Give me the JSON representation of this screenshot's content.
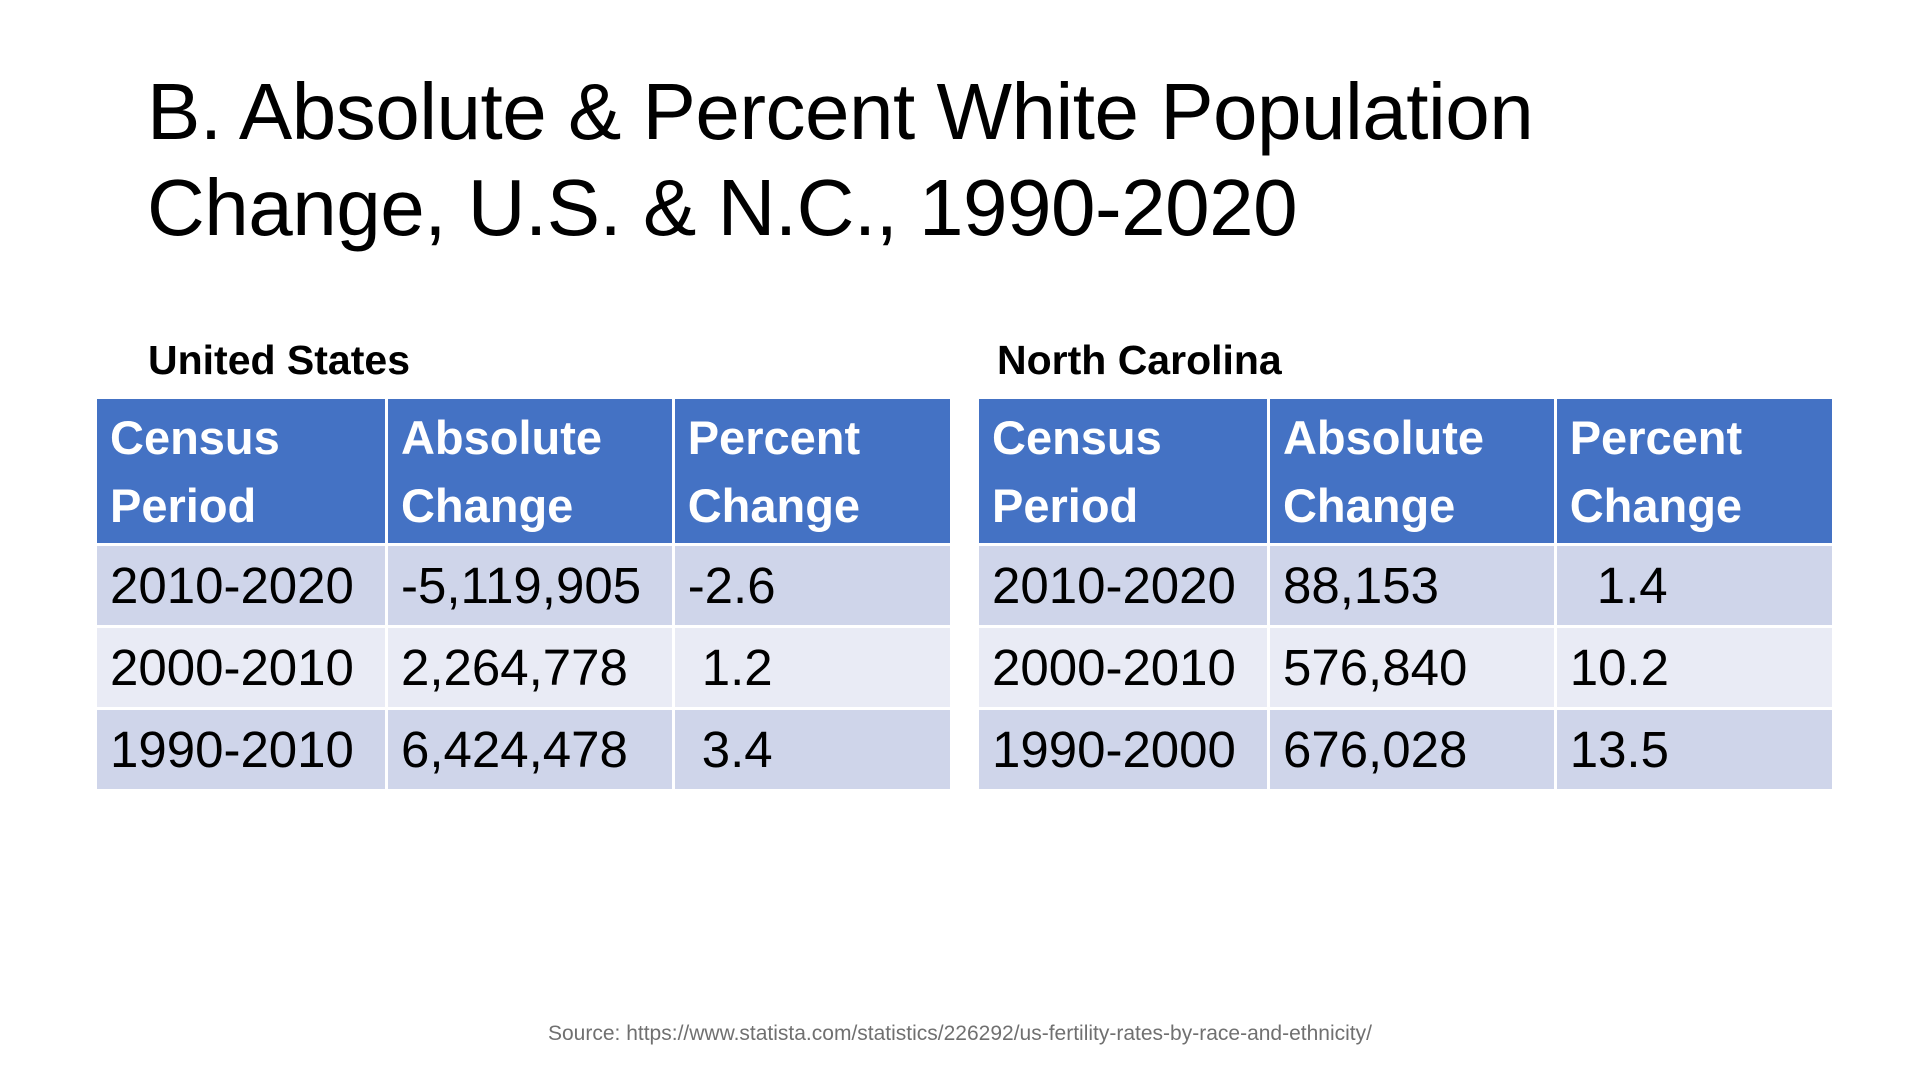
{
  "title": {
    "line1": "B. Absolute & Percent White Population",
    "line2": "Change, U.S. & N.C., 1990-2020"
  },
  "tables": {
    "us": {
      "heading": "United States",
      "headers": [
        "Census Period",
        "Absolute Change",
        "Percent Change"
      ],
      "rows": [
        [
          "2010-2020",
          "-5,119,905",
          "-2.6"
        ],
        [
          "2000-2010",
          "2,264,778",
          "1.2"
        ],
        [
          "1990-2010",
          "6,424,478",
          "3.4"
        ]
      ]
    },
    "nc": {
      "heading": "North Carolina",
      "headers": [
        "Census Period",
        "Absolute Change",
        "Percent Change"
      ],
      "rows": [
        [
          "2010-2020",
          "88,153",
          "1.4"
        ],
        [
          "2000-2010",
          "576,840",
          "10.2"
        ],
        [
          "1990-2000",
          "676,028",
          "13.5"
        ]
      ]
    }
  },
  "source": "Source: https://www.statista.com/statistics/226292/us-fertility-rates-by-race-and-ethnicity/",
  "colors": {
    "header_fill": "#4472c4",
    "row_dark": "#cfd5ea",
    "row_light": "#e9ebf5"
  }
}
